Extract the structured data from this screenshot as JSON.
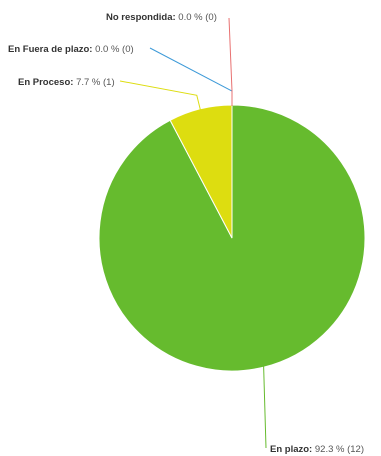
{
  "chart_data": {
    "type": "pie",
    "slices": [
      {
        "category": "En plazo",
        "percent": 92.3,
        "count": 12,
        "label": "En plazo: 92.3 % (12)",
        "color": "#66bb2e"
      },
      {
        "category": "En Proceso",
        "percent": 7.7,
        "count": 1,
        "label": "En Proceso: 7.7 % (1)",
        "color": "#dddd10"
      },
      {
        "category": "En Fuera de plazo",
        "percent": 0.0,
        "count": 0,
        "label": "En Fuera de plazo: 0.0 % (0)",
        "color": "#3d9ad8"
      },
      {
        "category": "No respondida",
        "percent": 0.0,
        "count": 0,
        "label": "No respondida: 0.0 % (0)",
        "color": "#e87070"
      }
    ]
  }
}
